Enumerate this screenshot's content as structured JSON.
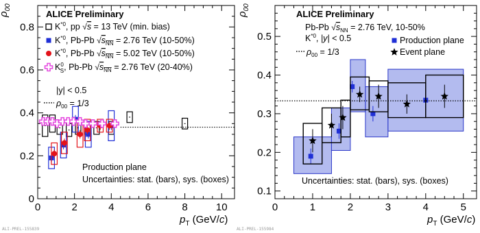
{
  "chart_data": [
    {
      "type": "scatter",
      "id": "left",
      "xlabel": "p_T (GeV/c)",
      "ylabel": "ρ_00",
      "xlim": [
        0,
        10.7
      ],
      "ylim": [
        0,
        0.9
      ],
      "xticks": [
        "0",
        "2",
        "4",
        "6",
        "8",
        "10"
      ],
      "yticks": [
        "0",
        "0.2",
        "0.4",
        "0.6",
        "0.8"
      ],
      "reference_line": {
        "y": 0.3333,
        "label": "ρ_00 = 1/3",
        "style": "dotted"
      },
      "title": "ALICE Preliminary",
      "legend_position": "top-left",
      "legend": [
        "K*0, pp √s = 13 TeV (min. bias)",
        "K*0, Pb-Pb √sNN = 2.76 TeV (10-50%)",
        "K*0, Pb-Pb √sNN = 5.02 TeV (10-50%)",
        "K0S, Pb-Pb √sNN = 2.76 TeV (20-40%)"
      ],
      "rapidity_label": "|y| < 0.5",
      "annotations": [
        "Production plane",
        "Uncertainties: stat. (bars), sys. (boxes)"
      ],
      "footer": "ALI-PREL-155839",
      "series": [
        {
          "name": "K*0, pp √s = 13 TeV (min. bias)",
          "color": "#000000",
          "marker": "open-square",
          "x": [
            0.4,
            0.8,
            1.2,
            1.7,
            2.2,
            2.7,
            3.2,
            4.0,
            5.0,
            8.0
          ],
          "y": [
            0.34,
            0.35,
            0.33,
            0.32,
            0.33,
            0.33,
            0.33,
            0.33,
            0.38,
            0.35
          ],
          "sys_half": [
            0.05,
            0.04,
            0.03,
            0.03,
            0.03,
            0.03,
            0.03,
            0.03,
            0.025,
            0.025
          ],
          "box_halfwidth": 0.15
        },
        {
          "name": "K*0, Pb-Pb √sNN = 2.76 TeV (10-50%)",
          "color": "#1f2fd6",
          "marker": "filled-square",
          "x": [
            0.75,
            1.4,
            2.05,
            2.75,
            4.0
          ],
          "y": [
            0.19,
            0.25,
            0.37,
            0.3,
            0.34
          ],
          "stat": [
            0.02,
            0.02,
            0.02,
            0.02,
            0.02
          ],
          "sys_half": [
            0.05,
            0.06,
            0.06,
            0.06,
            0.07
          ],
          "box_halfwidth": 0.16
        },
        {
          "name": "K*0, Pb-Pb √sNN = 5.02 TeV (10-50%)",
          "color": "#e3131a",
          "marker": "filled-circle",
          "x": [
            0.9,
            1.45,
            2.3,
            2.7,
            3.4,
            3.9
          ],
          "y": [
            0.21,
            0.26,
            0.3,
            0.32,
            0.34,
            0.34
          ],
          "stat": [
            0.02,
            0.02,
            0.02,
            0.02,
            0.02,
            0.02
          ],
          "sys_half": [
            0.05,
            0.05,
            0.06,
            0.05,
            0.03,
            0.03
          ],
          "box_halfwidth": 0.16
        },
        {
          "name": "K0S, Pb-Pb √sNN = 2.76 TeV (20-40%)",
          "color": "#e54ce0",
          "marker": "open-cross",
          "x": [
            0.3,
            0.55,
            0.8,
            1.05,
            1.35,
            1.65,
            1.95,
            2.3,
            2.6,
            3.0,
            3.5,
            4.2
          ],
          "y": [
            0.36,
            0.36,
            0.36,
            0.35,
            0.36,
            0.36,
            0.36,
            0.36,
            0.35,
            0.35,
            0.35,
            0.35
          ]
        }
      ]
    },
    {
      "type": "scatter",
      "id": "right",
      "xlabel": "p_T (GeV/c)",
      "ylabel": "ρ_00",
      "xlim": [
        0,
        5.35
      ],
      "ylim": [
        0.08,
        0.58
      ],
      "xticks": [
        "0",
        "1",
        "2",
        "3",
        "4",
        "5"
      ],
      "yticks": [
        "0.1",
        "0.2",
        "0.3",
        "0.4",
        "0.5"
      ],
      "reference_line": {
        "y": 0.3333,
        "label": "ρ_00 = 1/3",
        "style": "dotted"
      },
      "title": "ALICE Preliminary",
      "legend_position": "top-left",
      "info_lines": [
        "Pb-Pb √sNN = 2.76 TeV, 10-50%",
        "K*0, |y| < 0.5"
      ],
      "legend": [
        "Production plane",
        "Event plane"
      ],
      "annotations": [
        "Uncertainties: stat. (bars), sys. (boxes)"
      ],
      "footer": "ALI-PREL-155984",
      "series": [
        {
          "name": "Production plane",
          "color": "#1f2fd6",
          "marker": "filled-square",
          "x": [
            0.95,
            1.7,
            2.05,
            2.6,
            4.0
          ],
          "y": [
            0.19,
            0.255,
            0.37,
            0.3,
            0.335
          ],
          "stat": [
            0.02,
            0.02,
            0.015,
            0.02,
            0.02
          ],
          "box_low": [
            0.145,
            0.205,
            0.305,
            0.24,
            0.255
          ],
          "box_high": [
            0.24,
            0.315,
            0.44,
            0.37,
            0.415
          ],
          "box_x0": [
            0.5,
            1.5,
            2.0,
            2.4,
            3.0
          ],
          "box_x1": [
            1.5,
            2.0,
            2.4,
            3.0,
            5.0
          ]
        },
        {
          "name": "Event plane",
          "color": "#000000",
          "marker": "star",
          "x": [
            1.0,
            1.5,
            1.8,
            2.25,
            2.75,
            3.5,
            4.5
          ],
          "y": [
            0.23,
            0.27,
            0.29,
            0.35,
            0.345,
            0.325,
            0.345
          ],
          "stat": [
            0.03,
            0.03,
            0.03,
            0.02,
            0.03,
            0.025,
            0.03
          ],
          "box_low": [
            0.17,
            0.225,
            0.24,
            0.31,
            0.305,
            0.29,
            0.29
          ],
          "box_high": [
            0.275,
            0.315,
            0.335,
            0.395,
            0.385,
            0.38,
            0.4
          ],
          "box_x0": [
            0.75,
            1.25,
            1.75,
            2.0,
            2.5,
            3.0,
            4.0
          ],
          "box_x1": [
            1.25,
            1.75,
            2.0,
            2.5,
            3.0,
            4.0,
            5.0
          ]
        }
      ]
    }
  ]
}
